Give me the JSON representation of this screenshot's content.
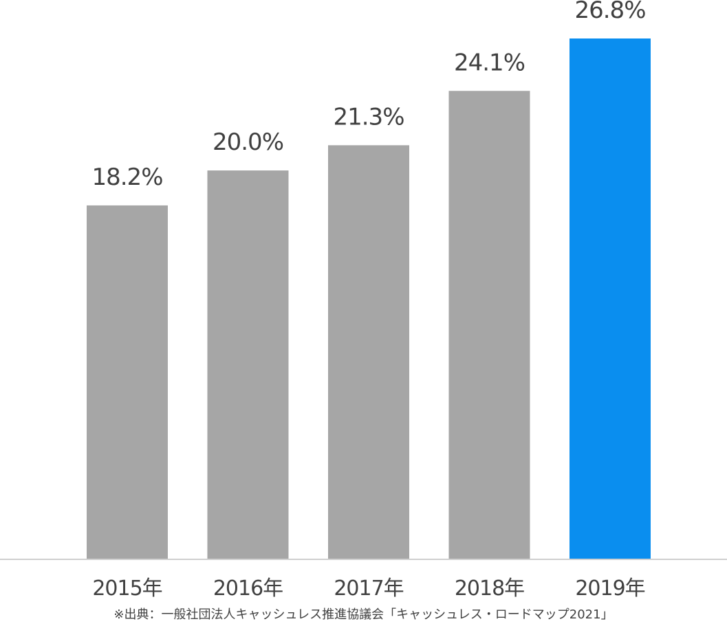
{
  "chart_data": {
    "type": "bar",
    "categories": [
      "2015年",
      "2016年",
      "2017年",
      "2018年",
      "2019年"
    ],
    "values": [
      18.2,
      20.0,
      21.3,
      24.1,
      26.8
    ],
    "value_labels": [
      "18.2%",
      "20.0%",
      "21.3%",
      "24.1%",
      "26.8%"
    ],
    "unit": "%",
    "ylim": [
      0,
      26.8
    ],
    "grid": false,
    "legend": "none",
    "bar_color": "#A6A6A6",
    "highlight_color": "#0A8EEF",
    "highlight_index": 4,
    "baseline_color": "#BFBFBF",
    "text_color": "#404040"
  },
  "source_note": "※出典：一般社団法人キャッシュレス推進協議会「キャッシュレス・ロードマップ2021」"
}
